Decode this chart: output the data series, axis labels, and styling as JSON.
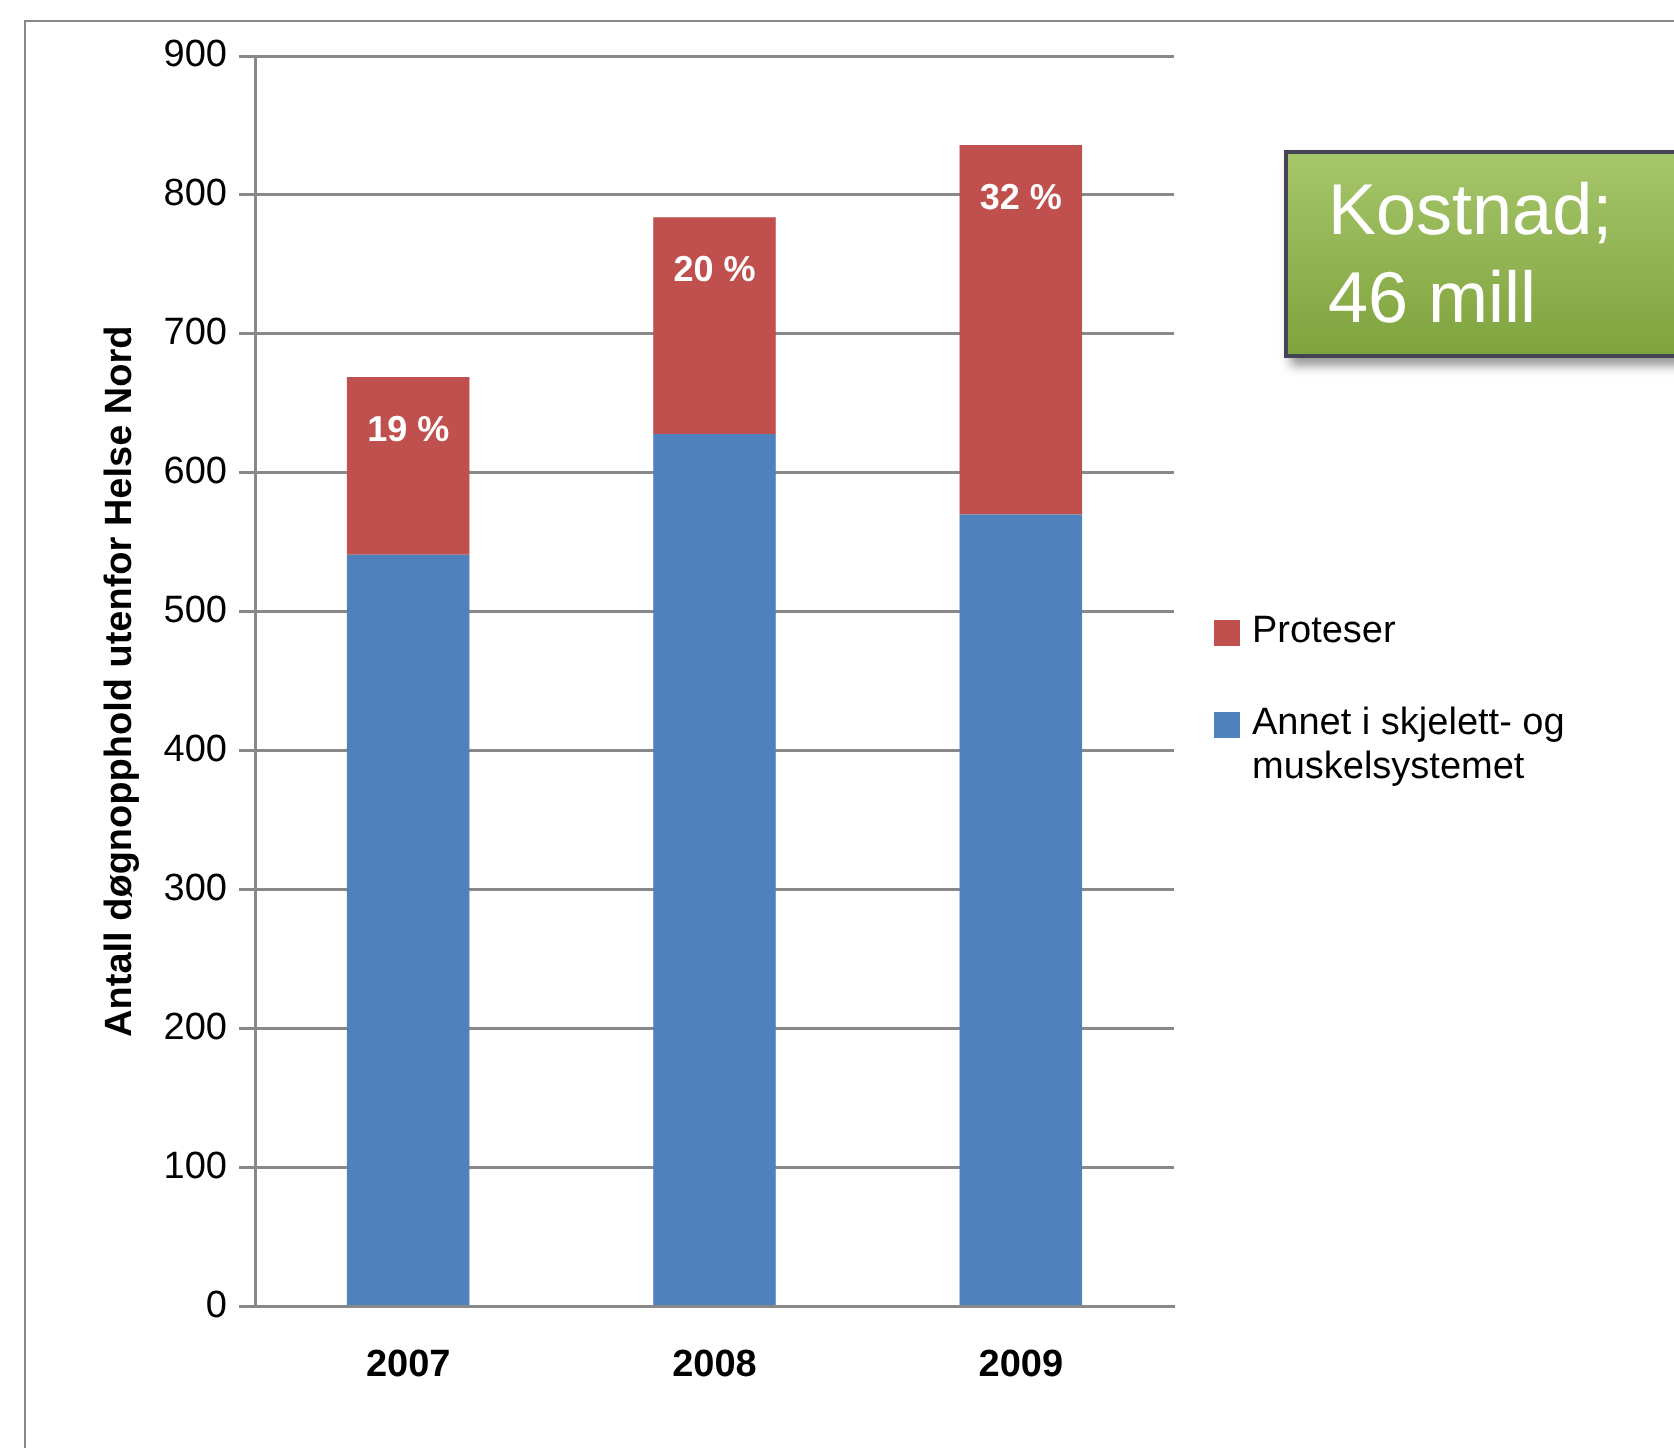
{
  "chart_data": {
    "type": "bar",
    "stacked": true,
    "ylabel": "Antall døgnopphold utenfor Helse Nord",
    "categories": [
      "2007",
      "2008",
      "2009"
    ],
    "series": [
      {
        "name": "Annet i skjelett- og muskelsystemet",
        "color": "#4f81bd",
        "values": [
          541,
          628,
          570
        ]
      },
      {
        "name": "Proteser",
        "color": "#c0504d",
        "values": [
          128,
          156,
          266
        ]
      }
    ],
    "ylim": [
      0,
      900
    ],
    "yticks": [
      0,
      100,
      200,
      300,
      400,
      500,
      600,
      700,
      800,
      900
    ],
    "grid": "y",
    "legend": "right",
    "annotations": [
      "Kostnad; 46 mill",
      {
        "text": "19 %",
        "x": "2007",
        "y": 669
      },
      {
        "text": "20 %",
        "x": "2008",
        "y": 784
      },
      {
        "text": "32 %",
        "x": "2009",
        "y": 836
      }
    ]
  }
}
